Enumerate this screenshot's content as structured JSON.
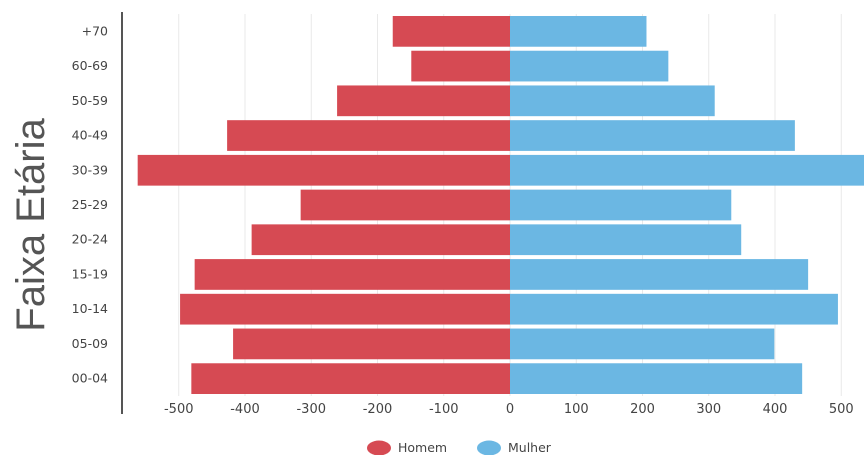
{
  "chart_data": {
    "type": "bar",
    "orientation": "horizontal",
    "ylabel": "Faixa Etária",
    "categories": [
      "+70",
      "60-69",
      "50-59",
      "40-49",
      "30-39",
      "25-29",
      "20-24",
      "15-19",
      "10-14",
      "05-09",
      "00-04"
    ],
    "series": [
      {
        "name": "Homem",
        "color": "#d64a53",
        "values": [
          -177,
          -149,
          -261,
          -427,
          -562,
          -316,
          -390,
          -476,
          -498,
          -418,
          -481
        ]
      },
      {
        "name": "Mulher",
        "color": "#6bb7e3",
        "values": [
          206,
          239,
          309,
          430,
          535,
          334,
          349,
          450,
          495,
          399,
          441
        ]
      }
    ],
    "xticks": [
      -500,
      -400,
      -300,
      -200,
      -100,
      0,
      100,
      200,
      300,
      400,
      500
    ],
    "xlim": [
      -580,
      535
    ],
    "grid": true,
    "legend_position": "bottom-center"
  }
}
